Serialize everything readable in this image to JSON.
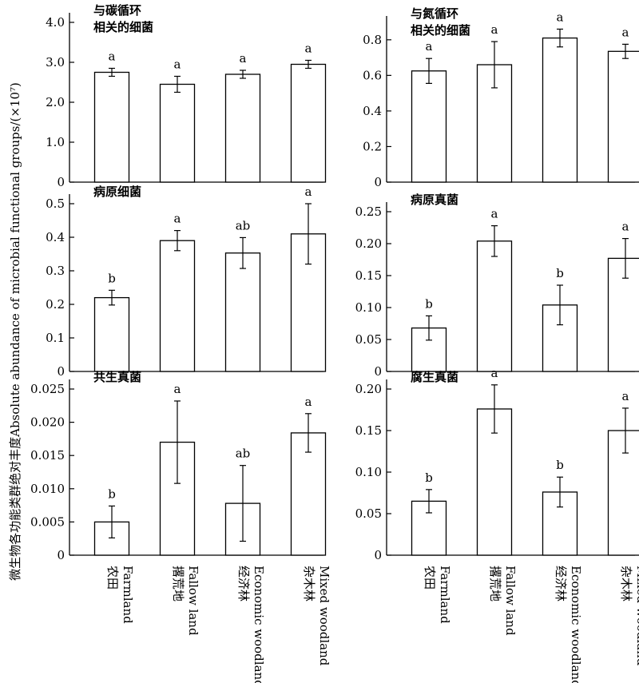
{
  "figure": {
    "ylabel_cn": "微生物各功能类群绝对丰度",
    "ylabel_en": "Absolute abundance of microbial functional groups/(×10⁷)",
    "categories": [
      {
        "cn": "农田",
        "en": "Farmland"
      },
      {
        "cn": "撂荒地",
        "en": "Fallow land"
      },
      {
        "cn": "经济林",
        "en": "Economic woodland"
      },
      {
        "cn": "杂木林",
        "en": "Mixed woodland"
      }
    ]
  },
  "chart_data": [
    {
      "type": "bar",
      "title": "与碳循环\n相关的细菌",
      "categories": [
        "农田 Farmland",
        "撂荒地 Fallow land",
        "经济林 Economic woodland",
        "杂木林 Mixed woodland"
      ],
      "values": [
        2.75,
        2.45,
        2.7,
        2.95
      ],
      "errors": [
        0.1,
        0.2,
        0.1,
        0.1
      ],
      "significance": [
        "a",
        "a",
        "a",
        "a"
      ],
      "ylim": [
        0,
        4.0
      ],
      "yticks": [
        "0",
        "1.0",
        "2.0",
        "3.0",
        "4.0"
      ]
    },
    {
      "type": "bar",
      "title": "与氮循环\n相关的细菌",
      "categories": [
        "农田 Farmland",
        "撂荒地 Fallow land",
        "经济林 Economic woodland",
        "杂木林 Mixed woodland"
      ],
      "values": [
        0.625,
        0.66,
        0.81,
        0.735
      ],
      "errors": [
        0.07,
        0.13,
        0.05,
        0.04
      ],
      "significance": [
        "a",
        "a",
        "a",
        "a"
      ],
      "ylim": [
        0,
        0.88
      ],
      "yticks": [
        "0",
        "0.2",
        "0.4",
        "0.6",
        "0.8"
      ]
    },
    {
      "type": "bar",
      "title": "病原细菌",
      "categories": [
        "农田 Farmland",
        "撂荒地 Fallow land",
        "经济林 Economic woodland",
        "杂木林 Mixed woodland"
      ],
      "values": [
        0.22,
        0.39,
        0.353,
        0.41
      ],
      "errors": [
        0.022,
        0.03,
        0.046,
        0.09
      ],
      "significance": [
        "b",
        "a",
        "ab",
        "a"
      ],
      "ylim": [
        0,
        0.5
      ],
      "yticks": [
        "0",
        "0.1",
        "0.2",
        "0.3",
        "0.4",
        "0.5"
      ]
    },
    {
      "type": "bar",
      "title": "病原真菌",
      "categories": [
        "农田 Farmland",
        "撂荒地 Fallow land",
        "经济林 Economic woodland",
        "杂木林 Mixed woodland"
      ],
      "values": [
        0.068,
        0.204,
        0.104,
        0.177
      ],
      "errors": [
        0.019,
        0.024,
        0.031,
        0.031
      ],
      "significance": [
        "b",
        "a",
        "b",
        "a"
      ],
      "ylim": [
        0,
        0.25
      ],
      "yticks": [
        "0",
        "0.05",
        "0.10",
        "0.15",
        "0.20",
        "0.25"
      ]
    },
    {
      "type": "bar",
      "title": "共生真菌",
      "categories": [
        "农田 Farmland",
        "撂荒地 Fallow land",
        "经济林 Economic woodland",
        "杂木林 Mixed woodland"
      ],
      "values": [
        0.005,
        0.017,
        0.0078,
        0.0184
      ],
      "errors": [
        0.0024,
        0.0062,
        0.0057,
        0.0029
      ],
      "significance": [
        "b",
        "a",
        "ab",
        "a"
      ],
      "ylim": [
        0,
        0.025
      ],
      "yticks": [
        "0",
        "0.005",
        "0.010",
        "0.015",
        "0.020",
        "0.025"
      ]
    },
    {
      "type": "bar",
      "title": "腐生真菌",
      "categories": [
        "农田 Farmland",
        "撂荒地 Fallow land",
        "经济林 Economic woodland",
        "杂木林 Mixed woodland"
      ],
      "values": [
        0.065,
        0.176,
        0.076,
        0.15
      ],
      "errors": [
        0.014,
        0.029,
        0.018,
        0.027
      ],
      "significance": [
        "b",
        "a",
        "b",
        "a"
      ],
      "ylim": [
        0,
        0.2
      ],
      "yticks": [
        "0",
        "0.05",
        "0.10",
        "0.15",
        "0.20"
      ]
    }
  ]
}
